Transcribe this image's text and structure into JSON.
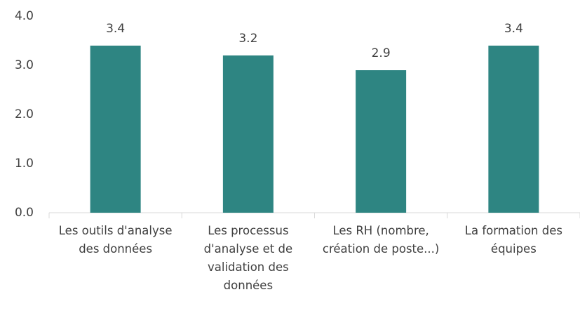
{
  "chart_data": {
    "type": "bar",
    "categories": [
      "Les outils d'analyse des données",
      "Les processus d'analyse et de validation des données",
      "Les RH (nombre, création de poste...)",
      "La formation des équipes"
    ],
    "values": [
      3.4,
      3.2,
      2.9,
      3.4
    ],
    "color": "#2e8582",
    "ylim": [
      0,
      4
    ],
    "yticks": [
      {
        "value": 0,
        "label": "0.0"
      },
      {
        "value": 1,
        "label": "1.0"
      },
      {
        "value": 2,
        "label": "2.0"
      },
      {
        "value": 3,
        "label": "3.0"
      },
      {
        "value": 4,
        "label": "4.0"
      }
    ],
    "grid": false
  }
}
